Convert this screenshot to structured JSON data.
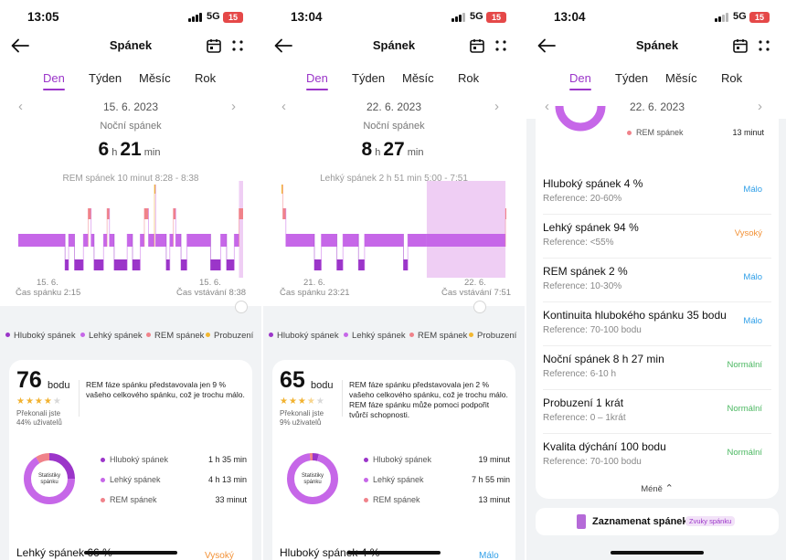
{
  "colors": {
    "deep": "#9b35c9",
    "light": "#c667e8",
    "rem": "#f0828a",
    "awake": "#f2b730",
    "fill": "#ecc6f2",
    "low": "#2f9fe8",
    "high": "#f29136",
    "normal": "#4cb862"
  },
  "icons": {
    "back": "arrow-left-icon",
    "calendar": "calendar-icon",
    "more": "four-dots-icon",
    "prev": "chevron-left-icon",
    "next": "chevron-right-icon",
    "less": "chevron-up-icon",
    "record": "phone-icon"
  },
  "tabs": [
    "Den",
    "Týden",
    "Měsíc",
    "Rok"
  ],
  "legend": {
    "deep": "Hluboký spánek",
    "light": "Lehký spánek",
    "rem": "REM spánek",
    "awake": "Probuzení"
  },
  "screens": [
    {
      "time": "13:05",
      "network": "5G",
      "battery": "15",
      "title": "Spánek",
      "date": "15. 6. 2023",
      "subtitle": "Noční spánek",
      "duration": {
        "h": "6",
        "h_unit": "h",
        "m": "21",
        "m_unit": "min"
      },
      "stage_note": "REM spánek 10 minut 8:28 - 8:38",
      "chart": {
        "start_label": "15. 6.",
        "start_time": "Čas spánku 2:15",
        "end_label": "15. 6.",
        "end_time": "Čas vstávání 8:38",
        "segments": [
          [
            "light",
            0,
            7.9
          ],
          [
            "deep",
            7.9,
            8.5
          ],
          [
            "light",
            8.5,
            9.5
          ],
          [
            "deep",
            9.5,
            11
          ],
          [
            "light",
            11,
            11.8
          ],
          [
            "rem",
            11.8,
            12.3
          ],
          [
            "light",
            12.3,
            12.8
          ],
          [
            "deep",
            12.8,
            14.4
          ],
          [
            "light",
            14.4,
            15
          ],
          [
            "rem",
            15,
            15.4
          ],
          [
            "light",
            15.4,
            16.2
          ],
          [
            "deep",
            16.2,
            18.4
          ],
          [
            "light",
            18.4,
            19.3
          ],
          [
            "deep",
            19.3,
            20.6
          ],
          [
            "light",
            20.6,
            21.3
          ],
          [
            "rem",
            21.3,
            22
          ],
          [
            "light",
            22,
            23
          ],
          [
            "awake",
            23,
            23.2
          ],
          [
            "light",
            23.2,
            25
          ],
          [
            "deep",
            25,
            25.6
          ],
          [
            "light",
            25.6,
            26.2
          ],
          [
            "rem",
            26.2,
            26.6
          ],
          [
            "light",
            26.6,
            27.5
          ],
          [
            "deep",
            27.5,
            28.5
          ],
          [
            "light",
            28.5,
            32.5
          ],
          [
            "deep",
            32.5,
            34.2
          ],
          [
            "light",
            34.2,
            35.2
          ],
          [
            "deep",
            35.2,
            36.5
          ],
          [
            "light",
            36.5,
            37.3
          ],
          [
            "rem",
            37.3,
            38
          ]
        ],
        "total_hours": 38,
        "highlight": [
          37.3,
          38
        ]
      },
      "score": {
        "value": "76",
        "unit": "bodu",
        "stars": 4,
        "stars_max": 5,
        "beat_line1": "Překonali jste",
        "beat_line2": "44% uživatelů",
        "text": "REM fáze spánku představovala jen 9 % vašeho celkového spánku, což je trochu málo."
      },
      "donut": {
        "label_line1": "Statistiky",
        "label_line2": "spánku",
        "deep": 25,
        "light": 66,
        "rem": 9
      },
      "stats": [
        {
          "key": "deep",
          "label": "Hluboký spánek",
          "value": "1 h 35 min"
        },
        {
          "key": "light",
          "label": "Lehký spánek",
          "value": "4 h 13 min"
        },
        {
          "key": "rem",
          "label": "REM spánek",
          "value": "33 minut"
        }
      ],
      "bottom_metric": "Lehký spánek 66 %",
      "bottom_status": "Vysoký",
      "bottom_status_key": "high"
    },
    {
      "time": "13:04",
      "network": "5G",
      "battery": "15",
      "title": "Spánek",
      "date": "22. 6. 2023",
      "subtitle": "Noční spánek",
      "duration": {
        "h": "8",
        "h_unit": "h",
        "m": "27",
        "m_unit": "min"
      },
      "stage_note": "Lehký spánek 2 h 51 min 5:00 - 7:51",
      "chart": {
        "start_label": "21. 6.",
        "start_time": "Čas spánku 23:21",
        "end_label": "22. 6.",
        "end_time": "Čas vstávání 7:51",
        "segments": [
          [
            "awake",
            0,
            0.15
          ],
          [
            "rem",
            0.15,
            0.5
          ],
          [
            "light",
            0.5,
            3.8
          ],
          [
            "deep",
            3.8,
            4.6
          ],
          [
            "light",
            4.6,
            6.4
          ],
          [
            "deep",
            6.4,
            7.1
          ],
          [
            "light",
            7.1,
            8.9
          ],
          [
            "deep",
            8.9,
            9.6
          ],
          [
            "light",
            9.6,
            14.1
          ],
          [
            "deep",
            14.1,
            14.6
          ],
          [
            "light",
            14.6,
            16.8
          ],
          [
            "light",
            16.8,
            25.9
          ],
          [
            "rem",
            25.9,
            26
          ]
        ],
        "total_hours": 26,
        "highlight": [
          16.8,
          25.9
        ]
      },
      "score": {
        "value": "65",
        "unit": "bodu",
        "stars": 3.5,
        "stars_max": 5,
        "beat_line1": "Překonali jste",
        "beat_line2": "9% uživatelů",
        "text": "REM fáze spánku představovala jen 2 % vašeho celkového spánku, což je trochu málo. REM fáze spánku může pomoci podpořit tvůrčí schopnosti."
      },
      "donut": {
        "label_line1": "Statistiky",
        "label_line2": "spánku",
        "deep": 4,
        "light": 94,
        "rem": 2
      },
      "stats": [
        {
          "key": "deep",
          "label": "Hluboký spánek",
          "value": "19 minut"
        },
        {
          "key": "light",
          "label": "Lehký spánek",
          "value": "7 h 55 min"
        },
        {
          "key": "rem",
          "label": "REM spánek",
          "value": "13 minut"
        }
      ],
      "bottom_metric": "Hluboký spánek 4 %",
      "bottom_status": "Málo",
      "bottom_status_key": "low"
    },
    {
      "time": "13:04",
      "network": "5G",
      "battery": "15",
      "title": "Spánek",
      "date": "22. 6. 2023",
      "mini_stat": {
        "key": "rem",
        "label": "REM spánek",
        "value": "13 minut"
      },
      "metrics": [
        {
          "title": "Hluboký spánek 4 %",
          "ref": "Reference: 20-60%",
          "status": "Málo",
          "status_key": "low"
        },
        {
          "title": "Lehký spánek 94 %",
          "ref": "Reference: <55%",
          "status": "Vysoký",
          "status_key": "high"
        },
        {
          "title": "REM spánek 2 %",
          "ref": "Reference: 10-30%",
          "status": "Málo",
          "status_key": "low"
        },
        {
          "title": "Kontinuita hlubokého spánku 35 bodu",
          "ref": "Reference: 70-100 bodu",
          "status": "Málo",
          "status_key": "low"
        },
        {
          "title": "Noční spánek 8 h 27 min",
          "ref": "Reference: 6-10 h",
          "status": "Normální",
          "status_key": "normal"
        },
        {
          "title": "Probuzení 1 krát",
          "ref": "Reference: 0 – 1krát",
          "status": "Normální",
          "status_key": "normal"
        },
        {
          "title": "Kvalita dýchání 100 bodu",
          "ref": "Reference: 70-100 bodu",
          "status": "Normální",
          "status_key": "normal"
        }
      ],
      "less_label": "Méně",
      "record_label": "Zaznamenat spánek",
      "record_tag": "Zvuky spánku"
    }
  ]
}
